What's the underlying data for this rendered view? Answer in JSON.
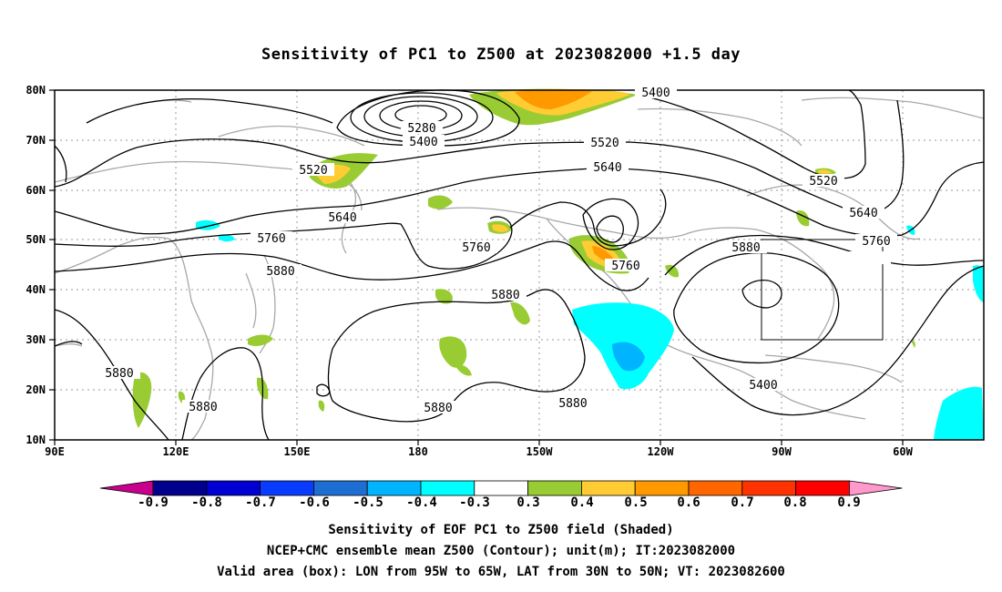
{
  "title": "Sensitivity of PC1 to Z500 at 2023082000 +1.5 day",
  "lat_ticks": [
    "80N",
    "70N",
    "60N",
    "50N",
    "40N",
    "30N",
    "20N",
    "10N"
  ],
  "lon_ticks": [
    "90E",
    "120E",
    "150E",
    "180",
    "150W",
    "120W",
    "90W",
    "60W"
  ],
  "contour_labels": [
    "5400",
    "5280",
    "5400",
    "5520",
    "5520",
    "5640",
    "5640",
    "5760",
    "5760",
    "5760",
    "5880",
    "5880",
    "5880",
    "5880",
    "5880",
    "5880",
    "5880",
    "5400",
    "5520",
    "5640",
    "5760"
  ],
  "colorbar": {
    "ticks": [
      "-0.9",
      "-0.8",
      "-0.7",
      "-0.6",
      "-0.5",
      "-0.4",
      "-0.3",
      "0.3",
      "0.4",
      "0.5",
      "0.6",
      "0.7",
      "0.8",
      "0.9"
    ],
    "colors": [
      "#c8008c",
      "#00008c",
      "#0000d2",
      "#0a3cff",
      "#1e6ed2",
      "#00b4ff",
      "#00ffff",
      "#ffffff",
      "#99cc33",
      "#ffcc33",
      "#ff9900",
      "#ff6600",
      "#ff3300",
      "#ff0000",
      "#ff99cc"
    ]
  },
  "caption": {
    "line1": "Sensitivity of EOF PC1 to Z500 field (Shaded)",
    "line2": "NCEP+CMC ensemble mean Z500 (Contour); unit(m); IT:2023082000",
    "line3": "Valid area (box): LON from 95W to 65W, LAT from 30N to 50N; VT: 2023082600"
  }
}
